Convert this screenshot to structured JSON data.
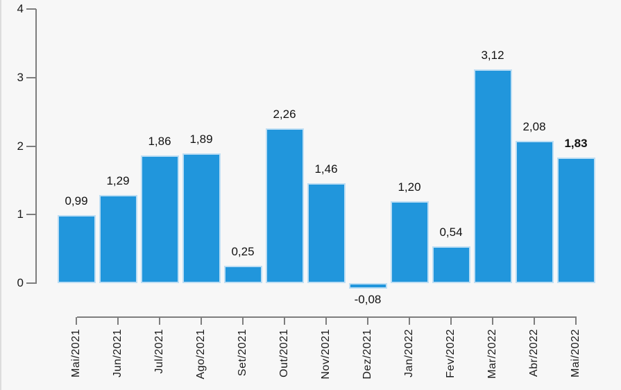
{
  "chart_data": {
    "type": "bar",
    "title": "",
    "xlabel": "",
    "ylabel": "",
    "categories": [
      "Mai/2021",
      "Jun/2021",
      "Jul/2021",
      "Ago/2021",
      "Set/2021",
      "Out/2021",
      "Nov/2021",
      "Dez/2021",
      "Jan/2022",
      "Fev/2022",
      "Mar/2022",
      "Abr/2022",
      "Mai/2022"
    ],
    "values": [
      0.99,
      1.29,
      1.86,
      1.89,
      0.25,
      2.26,
      1.46,
      -0.08,
      1.2,
      0.54,
      3.12,
      2.08,
      1.83
    ],
    "value_labels": [
      "0,99",
      "1,29",
      "1,86",
      "1,89",
      "0,25",
      "2,26",
      "1,46",
      "-0,08",
      "1,20",
      "0,54",
      "3,12",
      "2,08",
      "1,83"
    ],
    "bold_label_index": 12,
    "y_ticks": [
      0,
      1,
      2,
      3,
      4
    ],
    "y_tick_labels": [
      "0",
      "1",
      "2",
      "3",
      "4"
    ],
    "ylim": [
      -0.2,
      4
    ],
    "grid": false,
    "legend": "none",
    "colors": {
      "bar": "#2196dc",
      "bar_edge": "#bddef4",
      "axis": "#7d7d7d",
      "text": "#1a1a1a",
      "background": "#f7f7f7"
    }
  }
}
